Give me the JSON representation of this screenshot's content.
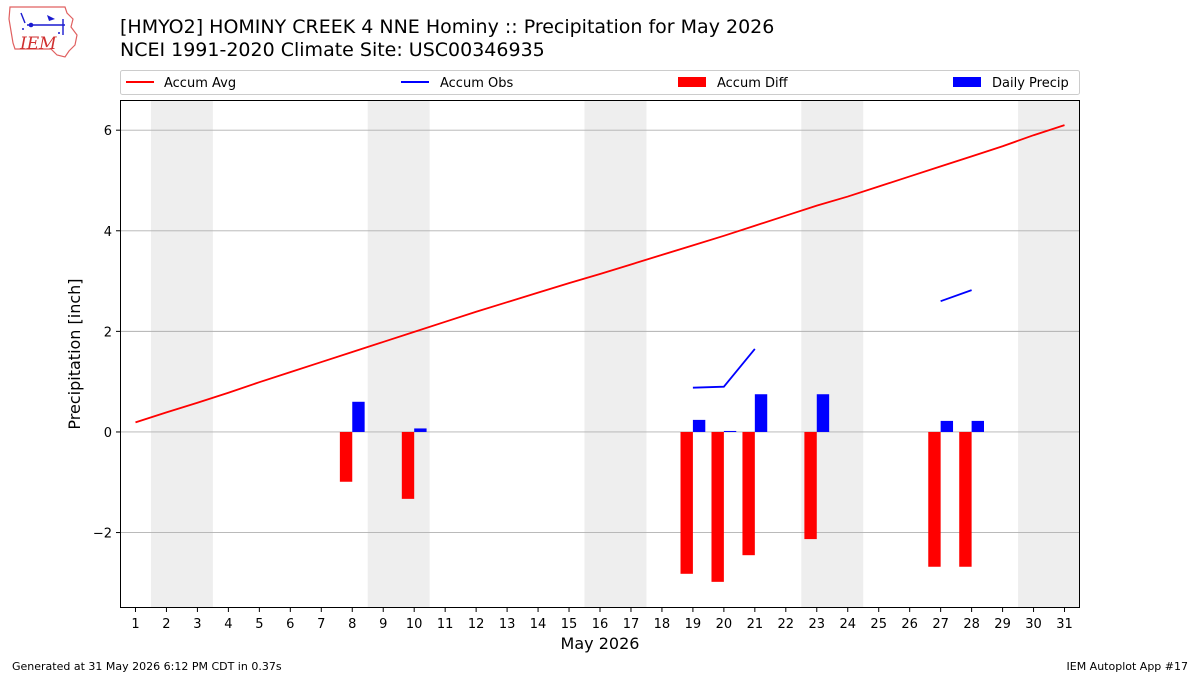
{
  "header": {
    "title": "[HMYO2] HOMINY CREEK 4 NNE Hominy :: Precipitation for May 2026",
    "subtitle": "NCEI 1991-2020 Climate Site: USC00346935"
  },
  "logo": {
    "text": "IEM",
    "icon": "iem-logo"
  },
  "footer": {
    "generated": "Generated at 31 May 2026 6:12 PM CDT in 0.37s",
    "app": "IEM Autoplot App #17"
  },
  "colors": {
    "accum_avg": "#ff0000",
    "accum_obs": "#0000ff",
    "accum_diff": "#ff0000",
    "daily_precip": "#0000ff",
    "weekend_shade": "#eeeeee",
    "grid": "#b0b0b0"
  },
  "chart_data": {
    "type": "bar",
    "xlabel": "May 2026",
    "ylabel": "Precipitation [inch]",
    "xlim": [
      0.5,
      31.5
    ],
    "ylim": [
      -3.5,
      6.6
    ],
    "x_ticks": [
      1,
      2,
      3,
      4,
      5,
      6,
      7,
      8,
      9,
      10,
      11,
      12,
      13,
      14,
      15,
      16,
      17,
      18,
      19,
      20,
      21,
      22,
      23,
      24,
      25,
      26,
      27,
      28,
      29,
      30,
      31
    ],
    "y_ticks": [
      -2,
      0,
      2,
      4,
      6
    ],
    "y_tick_labels": [
      "−2",
      "0",
      "2",
      "4",
      "6"
    ],
    "grid": "horizontal",
    "legend_placement": "top",
    "weekend_days": [
      2,
      3,
      9,
      10,
      16,
      17,
      23,
      24,
      30,
      31
    ],
    "series": [
      {
        "name": "Accum Avg",
        "kind": "line",
        "days": [
          1,
          2,
          3,
          4,
          5,
          6,
          7,
          8,
          9,
          10,
          11,
          12,
          13,
          14,
          15,
          16,
          17,
          18,
          19,
          20,
          21,
          22,
          23,
          24,
          25,
          26,
          27,
          28,
          29,
          30,
          31
        ],
        "values": [
          0.19,
          0.39,
          0.58,
          0.78,
          0.99,
          1.19,
          1.39,
          1.59,
          1.79,
          1.99,
          2.19,
          2.39,
          2.58,
          2.77,
          2.96,
          3.14,
          3.33,
          3.52,
          3.71,
          3.9,
          4.1,
          4.3,
          4.5,
          4.68,
          4.88,
          5.08,
          5.28,
          5.48,
          5.68,
          5.9,
          6.1
        ]
      },
      {
        "name": "Accum Obs",
        "kind": "line",
        "segments": [
          {
            "days": [
              19,
              20,
              21
            ],
            "values": [
              0.88,
              0.9,
              1.65
            ]
          },
          {
            "days": [
              27,
              28
            ],
            "values": [
              2.6,
              2.82
            ]
          }
        ]
      },
      {
        "name": "Accum Diff",
        "kind": "bar",
        "days": [
          8,
          10,
          19,
          20,
          21,
          23,
          27,
          28
        ],
        "values": [
          -0.99,
          -1.33,
          -2.82,
          -2.98,
          -2.45,
          -2.13,
          -2.68,
          -2.68
        ]
      },
      {
        "name": "Daily Precip",
        "kind": "bar",
        "days": [
          8,
          10,
          19,
          20,
          21,
          23,
          27,
          28
        ],
        "values": [
          0.6,
          0.07,
          0.24,
          0.02,
          0.75,
          0.75,
          0.22,
          0.22
        ]
      }
    ]
  }
}
